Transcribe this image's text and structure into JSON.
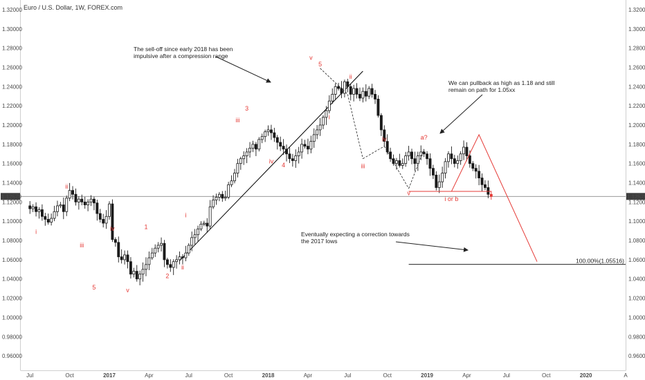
{
  "chart_data": {
    "type": "candlestick",
    "title": "Euro / U.S. Dollar, 1W, FOREX.com",
    "colors": {
      "up": "#ffffff",
      "down": "#1a1a1a",
      "wave_label": "#e53935",
      "projection": "#e53935",
      "trendline": "#000000"
    },
    "ylim": [
      0.945,
      1.33
    ],
    "y_ticks": [
      "1.32000",
      "1.30000",
      "1.28000",
      "1.26000",
      "1.24000",
      "1.22000",
      "1.20000",
      "1.18000",
      "1.16000",
      "1.14000",
      "1.12000",
      "1.10000",
      "1.08000",
      "1.06000",
      "1.04000",
      "1.02000",
      "1.00000",
      "0.98000",
      "0.96000"
    ],
    "y_tick_values": [
      1.32,
      1.3,
      1.28,
      1.26,
      1.24,
      1.22,
      1.2,
      1.18,
      1.16,
      1.14,
      1.12,
      1.1,
      1.08,
      1.06,
      1.04,
      1.02,
      1.0,
      0.98,
      0.96
    ],
    "x_ticks": [
      "Jul",
      "Oct",
      "2017",
      "Apr",
      "Jul",
      "Oct",
      "2018",
      "Apr",
      "Jul",
      "Oct",
      "2019",
      "Apr",
      "Jul",
      "Oct",
      "2020",
      "A"
    ],
    "x_tick_positions": [
      0,
      13,
      26,
      39,
      52,
      65,
      78,
      91,
      104,
      117,
      130,
      143,
      156,
      169,
      182,
      195
    ],
    "x_range": [
      -3,
      195
    ],
    "current_price": {
      "value": 1.12579,
      "label": "1.12579"
    },
    "candles_close": [
      1.113,
      1.115,
      1.11,
      1.112,
      1.105,
      1.102,
      1.099,
      1.103,
      1.11,
      1.116,
      1.117,
      1.11,
      1.124,
      1.132,
      1.128,
      1.12,
      1.123,
      1.12,
      1.117,
      1.12,
      1.123,
      1.119,
      1.108,
      1.102,
      1.098,
      1.105,
      1.118,
      1.081,
      1.078,
      1.063,
      1.06,
      1.065,
      1.058,
      1.045,
      1.048,
      1.04,
      1.045,
      1.05,
      1.055,
      1.062,
      1.067,
      1.072,
      1.075,
      1.077,
      1.06,
      1.055,
      1.052,
      1.058,
      1.06,
      1.063,
      1.062,
      1.067,
      1.075,
      1.083,
      1.086,
      1.092,
      1.097,
      1.098,
      1.095,
      1.115,
      1.122,
      1.125,
      1.128,
      1.124,
      1.125,
      1.138,
      1.142,
      1.15,
      1.16,
      1.165,
      1.168,
      1.172,
      1.176,
      1.18,
      1.175,
      1.185,
      1.188,
      1.193,
      1.195,
      1.192,
      1.187,
      1.182,
      1.178,
      1.175,
      1.17,
      1.165,
      1.163,
      1.168,
      1.172,
      1.18,
      1.178,
      1.175,
      1.183,
      1.19,
      1.195,
      1.2,
      1.208,
      1.215,
      1.225,
      1.232,
      1.24,
      1.238,
      1.233,
      1.245,
      1.24,
      1.232,
      1.238,
      1.232,
      1.228,
      1.235,
      1.23,
      1.238,
      1.232,
      1.227,
      1.21,
      1.195,
      1.183,
      1.172,
      1.165,
      1.16,
      1.163,
      1.158,
      1.16,
      1.168,
      1.172,
      1.165,
      1.16,
      1.168,
      1.172,
      1.17,
      1.165,
      1.155,
      1.148,
      1.135,
      1.141,
      1.15,
      1.162,
      1.17,
      1.165,
      1.16,
      1.163,
      1.17,
      1.177,
      1.168,
      1.16,
      1.155,
      1.152,
      1.145,
      1.138,
      1.135,
      1.128,
      1.12579
    ],
    "elliott_waves": [
      {
        "label": "i",
        "x": 2,
        "y": 1.087
      },
      {
        "label": "ii",
        "x": 12,
        "y": 1.134
      },
      {
        "label": "iii",
        "x": 17,
        "y": 1.073
      },
      {
        "label": "iv",
        "x": 27,
        "y": 1.09
      },
      {
        "label": "5",
        "x": 21,
        "y": 1.029
      },
      {
        "label": "v",
        "x": 32,
        "y": 1.026
      },
      {
        "label": "1",
        "x": 38,
        "y": 1.092
      },
      {
        "label": "2",
        "x": 45,
        "y": 1.041
      },
      {
        "label": "i",
        "x": 51,
        "y": 1.104
      },
      {
        "label": "ii",
        "x": 50,
        "y": 1.05
      },
      {
        "label": "iii",
        "x": 68,
        "y": 1.203
      },
      {
        "label": "3",
        "x": 71,
        "y": 1.215
      },
      {
        "label": "iv",
        "x": 79,
        "y": 1.16
      },
      {
        "label": "4",
        "x": 83,
        "y": 1.156
      },
      {
        "label": "v",
        "x": 92,
        "y": 1.268
      },
      {
        "label": "5",
        "x": 95,
        "y": 1.261
      },
      {
        "label": "i",
        "x": 98,
        "y": 1.206
      },
      {
        "label": "ii",
        "x": 105,
        "y": 1.248
      },
      {
        "label": "iii",
        "x": 109,
        "y": 1.155
      },
      {
        "label": "iv",
        "x": 116,
        "y": 1.183
      },
      {
        "label": "v",
        "x": 124,
        "y": 1.127
      },
      {
        "label": "a?",
        "x": 129,
        "y": 1.185
      },
      {
        "label": "i or b",
        "x": 138,
        "y": 1.121
      }
    ],
    "annotations": [
      {
        "text": "The sell-off since early 2018 has been",
        "line": 1
      },
      {
        "text": "impulsive after a compression range",
        "line": 2
      },
      {
        "text": "We can pullback as high as 1.18 and still",
        "line": 3
      },
      {
        "text": "remain on path for 1.05xx",
        "line": 4
      },
      {
        "text": "Eventually expecting a correction towards",
        "line": 5
      },
      {
        "text": "the 2017 lows",
        "line": 6
      }
    ],
    "fib_level": {
      "label": "100.00%(1.05516)",
      "value": 1.05516
    },
    "projection_path": [
      [
        138,
        1.131
      ],
      [
        147,
        1.19
      ],
      [
        166,
        1.058
      ]
    ],
    "horizontal_support": 1.131,
    "trendline": [
      [
        49,
        1.059
      ],
      [
        109,
        1.256
      ]
    ]
  }
}
